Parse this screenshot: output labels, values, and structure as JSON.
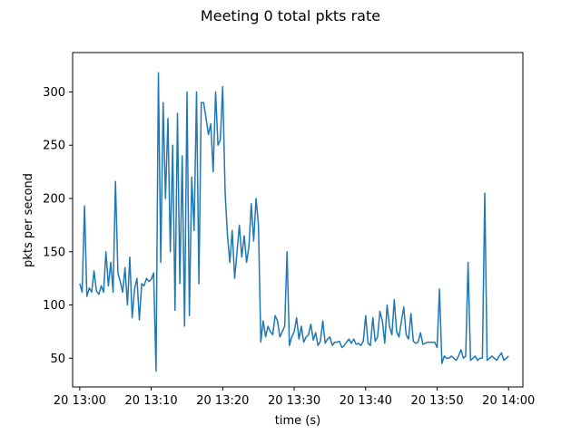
{
  "chart_data": {
    "type": "line",
    "title": "Meeting 0 total pkts rate",
    "xlabel": "time (s)",
    "ylabel": "pkts per second",
    "xlim": [
      "12:59:00",
      "14:02:00"
    ],
    "ylim": [
      23,
      337
    ],
    "x_ticks": [
      "20 13:00",
      "20 13:10",
      "20 13:20",
      "20 13:30",
      "20 13:40",
      "20 13:50",
      "20 14:00"
    ],
    "y_ticks": [
      50,
      100,
      150,
      200,
      250,
      300
    ],
    "grid": false,
    "line_color": "#1f77b4",
    "series": [
      {
        "x": [
          "13:00:00",
          "13:00:20",
          "13:00:40",
          "13:01:00",
          "13:01:20",
          "13:01:40",
          "13:02:00",
          "13:02:20",
          "13:02:40",
          "13:03:00",
          "13:03:20",
          "13:03:40",
          "13:04:00",
          "13:04:20",
          "13:04:40",
          "13:05:00",
          "13:05:20",
          "13:05:40",
          "13:06:00",
          "13:06:20",
          "13:06:40",
          "13:07:00",
          "13:07:20",
          "13:07:40",
          "13:08:00",
          "13:08:20",
          "13:08:40",
          "13:09:00",
          "13:09:20",
          "13:09:40",
          "13:10:00",
          "13:10:20",
          "13:10:40",
          "13:11:00",
          "13:11:20",
          "13:11:40",
          "13:12:00",
          "13:12:20",
          "13:12:40",
          "13:13:00",
          "13:13:20",
          "13:13:40",
          "13:14:00",
          "13:14:20",
          "13:14:40",
          "13:15:00",
          "13:15:20",
          "13:15:40",
          "13:16:00",
          "13:16:20",
          "13:16:40",
          "13:17:00",
          "13:17:20",
          "13:17:40",
          "13:18:00",
          "13:18:20",
          "13:18:40",
          "13:19:00",
          "13:19:20",
          "13:19:40",
          "13:20:00",
          "13:20:20",
          "13:20:40",
          "13:21:00",
          "13:21:20",
          "13:21:40",
          "13:22:00",
          "13:22:20",
          "13:22:40",
          "13:23:00",
          "13:23:20",
          "13:23:40",
          "13:24:00",
          "13:24:20",
          "13:24:40",
          "13:25:00",
          "13:25:20",
          "13:25:40",
          "13:26:00",
          "13:26:20",
          "13:26:40",
          "13:27:00",
          "13:27:20",
          "13:27:40",
          "13:28:00",
          "13:28:20",
          "13:28:40",
          "13:29:00",
          "13:29:20",
          "13:29:40",
          "13:30:00",
          "13:30:20",
          "13:30:40",
          "13:31:00",
          "13:31:20",
          "13:31:40",
          "13:32:00",
          "13:32:20",
          "13:32:40",
          "13:33:00",
          "13:33:20",
          "13:33:40",
          "13:34:00",
          "13:34:20",
          "13:34:40",
          "13:35:00",
          "13:35:20",
          "13:35:40",
          "13:36:00",
          "13:36:20",
          "13:36:40",
          "13:37:00",
          "13:37:20",
          "13:37:40",
          "13:38:00",
          "13:38:20",
          "13:38:40",
          "13:39:00",
          "13:39:20",
          "13:39:40",
          "13:40:00",
          "13:40:20",
          "13:40:40",
          "13:41:00",
          "13:41:20",
          "13:41:40",
          "13:42:00",
          "13:42:20",
          "13:42:40",
          "13:43:00",
          "13:43:20",
          "13:43:40",
          "13:44:00",
          "13:44:20",
          "13:44:40",
          "13:45:00",
          "13:45:20",
          "13:45:40",
          "13:46:00",
          "13:46:20",
          "13:46:40",
          "13:47:00",
          "13:47:20",
          "13:47:40",
          "13:48:00",
          "13:48:20",
          "13:48:40",
          "13:49:00",
          "13:49:20",
          "13:49:40",
          "13:50:00",
          "13:50:20",
          "13:50:40",
          "13:51:00",
          "13:51:20",
          "13:51:40",
          "13:52:00",
          "13:52:20",
          "13:52:40",
          "13:53:00",
          "13:53:20",
          "13:53:40",
          "13:54:00",
          "13:54:20",
          "13:54:40",
          "13:55:00",
          "13:55:20",
          "13:55:40",
          "13:56:00",
          "13:56:20",
          "13:56:40",
          "13:57:00",
          "13:57:20",
          "13:57:40",
          "13:58:00",
          "13:58:20",
          "13:58:40",
          "13:59:00",
          "13:59:20",
          "13:59:40",
          "14:00:00"
        ],
        "values": [
          120,
          112,
          193,
          108,
          116,
          112,
          132,
          113,
          110,
          118,
          112,
          150,
          118,
          140,
          112,
          216,
          130,
          122,
          112,
          135,
          100,
          145,
          88,
          115,
          125,
          86,
          120,
          118,
          125,
          122,
          124,
          130,
          38,
          318,
          140,
          290,
          200,
          275,
          150,
          250,
          95,
          280,
          120,
          240,
          80,
          300,
          90,
          220,
          170,
          300,
          120,
          290,
          290,
          275,
          260,
          270,
          225,
          300,
          250,
          255,
          305,
          205,
          165,
          140,
          170,
          125,
          150,
          175,
          145,
          165,
          140,
          155,
          195,
          160,
          200,
          175,
          65,
          85,
          70,
          80,
          75,
          72,
          90,
          85,
          70,
          75,
          80,
          150,
          62,
          70,
          75,
          88,
          68,
          80,
          65,
          70,
          72,
          82,
          67,
          74,
          62,
          66,
          85,
          64,
          68,
          70,
          62,
          65,
          65,
          66,
          60,
          62,
          65,
          68,
          64,
          68,
          63,
          64,
          62,
          66,
          90,
          64,
          62,
          88,
          66,
          70,
          94,
          85,
          64,
          100,
          80,
          72,
          105,
          75,
          70,
          85,
          98,
          72,
          68,
          92,
          66,
          64,
          65,
          74,
          63,
          64,
          65,
          65,
          65,
          65,
          60,
          115,
          45,
          52,
          50,
          50,
          52,
          50,
          48,
          52,
          58,
          50,
          52,
          140,
          48,
          50,
          52,
          48,
          50,
          50,
          205,
          48,
          50,
          52,
          50,
          48,
          52,
          55,
          48,
          50,
          52
        ]
      }
    ]
  }
}
